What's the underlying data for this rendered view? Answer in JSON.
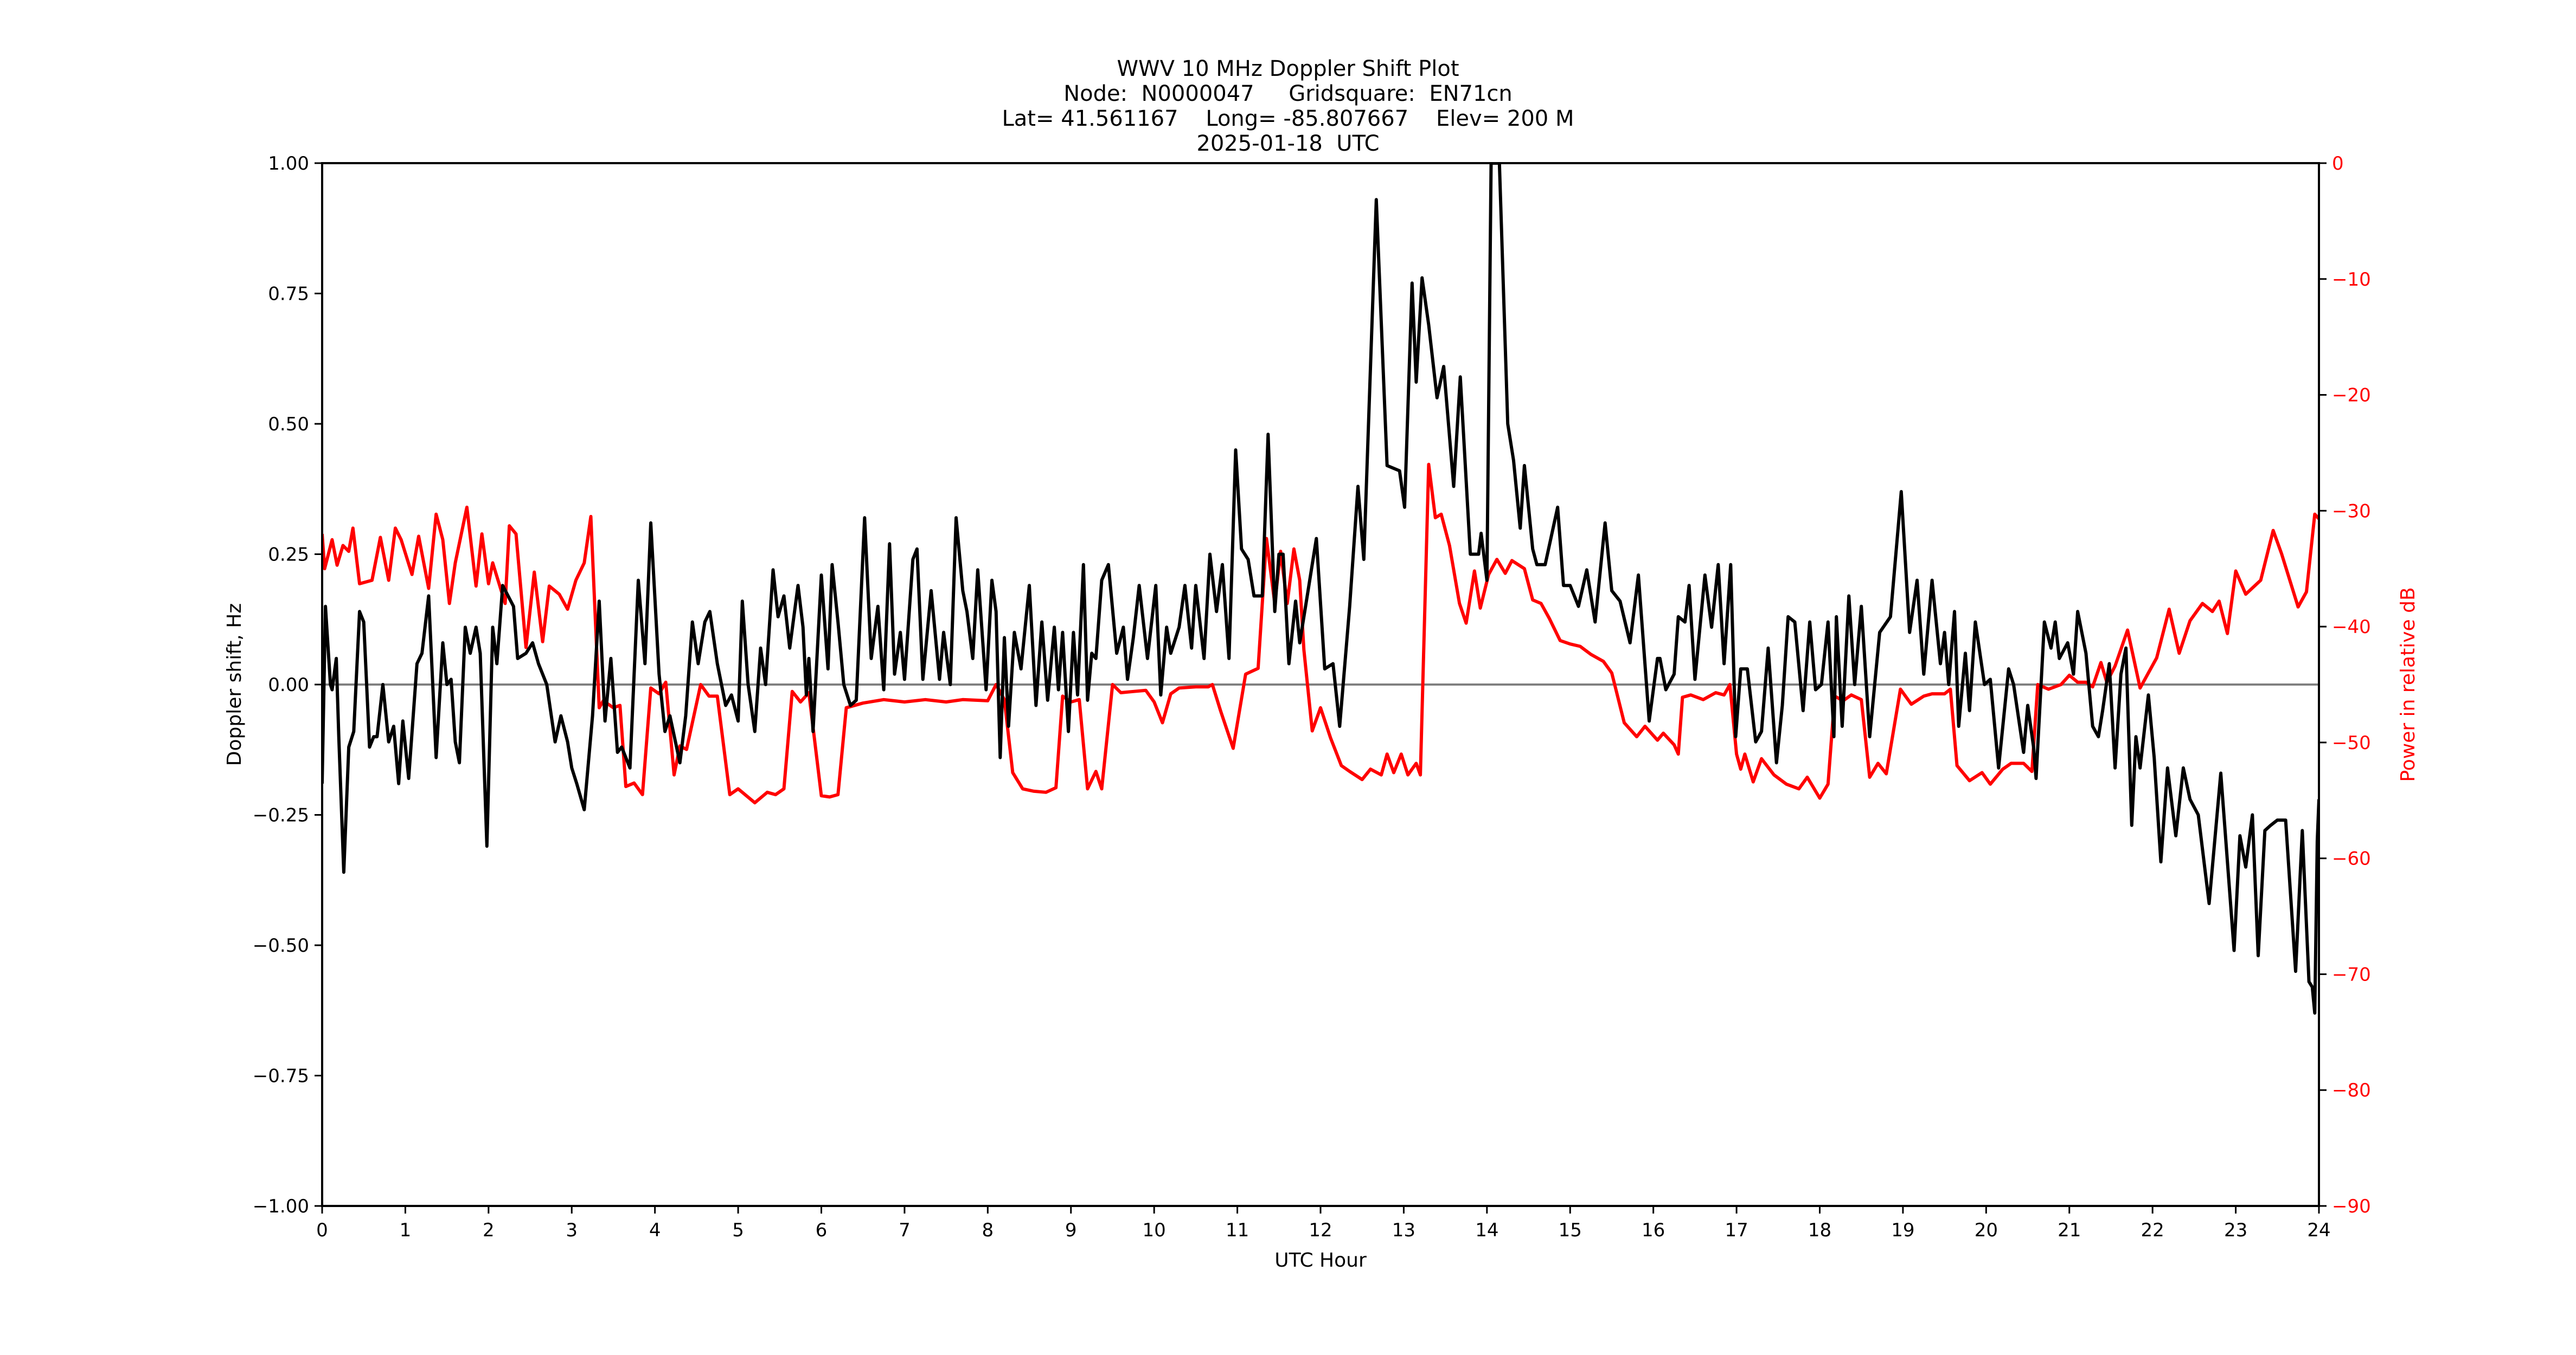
{
  "title": {
    "line1": "WWV 10 MHz Doppler Shift Plot",
    "line2": "Node:  N0000047     Gridsquare:  EN71cn",
    "line3": "Lat= 41.561167    Long= -85.807667    Elev= 200 M",
    "line4": "2025-01-18  UTC"
  },
  "colors": {
    "doppler": "#000000",
    "power": "#ff0000",
    "zero_line": "#808080",
    "axis": "#000000"
  },
  "chart_data": {
    "type": "line",
    "title": "WWV 10 MHz Doppler Shift Plot",
    "subtitle": [
      "Node:  N0000047     Gridsquare:  EN71cn",
      "Lat= 41.561167    Long= -85.807667    Elev= 200 M",
      "2025-01-18  UTC"
    ],
    "xlabel": "UTC Hour",
    "ylabel": "Doppler shift, Hz",
    "y2label": "Power in relative dB",
    "xlim": [
      0,
      24
    ],
    "ylim": [
      -1.0,
      1.0
    ],
    "y2lim": [
      -90,
      0
    ],
    "xticks": [
      0,
      1,
      2,
      3,
      4,
      5,
      6,
      7,
      8,
      9,
      10,
      11,
      12,
      13,
      14,
      15,
      16,
      17,
      18,
      19,
      20,
      21,
      22,
      23,
      24
    ],
    "yticks": [
      "1.00",
      "0.75",
      "0.50",
      "0.25",
      "0.00",
      "−0.25",
      "−0.50",
      "−0.75",
      "−1.00"
    ],
    "yticks_values": [
      1.0,
      0.75,
      0.5,
      0.25,
      0.0,
      -0.25,
      -0.5,
      -0.75,
      -1.0
    ],
    "y2ticks": [
      "0",
      "−10",
      "−20",
      "−30",
      "−40",
      "−50",
      "−60",
      "−70",
      "−80",
      "−90"
    ],
    "y2ticks_values": [
      0,
      -10,
      -20,
      -30,
      -40,
      -50,
      -60,
      -70,
      -80,
      -90
    ],
    "grid": false,
    "reference_line": {
      "y": 0.0,
      "color": "#808080"
    },
    "legend": null,
    "series": [
      {
        "name": "Doppler shift",
        "axis": "left",
        "color": "#000000",
        "x": [
          0,
          0.04,
          0.1,
          0.12,
          0.17,
          0.2,
          0.26,
          0.32,
          0.38,
          0.45,
          0.5,
          0.57,
          0.62,
          0.66,
          0.73,
          0.8,
          0.86,
          0.92,
          0.97,
          1.04,
          1.14,
          1.2,
          1.28,
          1.37,
          1.45,
          1.5,
          1.55,
          1.6,
          1.65,
          1.72,
          1.78,
          1.85,
          1.9,
          1.98,
          2.05,
          2.1,
          2.17,
          2.3,
          2.35,
          2.45,
          2.53,
          2.6,
          2.7,
          2.8,
          2.87,
          2.95,
          3.0,
          3.06,
          3.15,
          3.25,
          3.33,
          3.4,
          3.47,
          3.55,
          3.6,
          3.7,
          3.8,
          3.88,
          3.95,
          4.05,
          4.12,
          4.18,
          4.3,
          4.37,
          4.45,
          4.52,
          4.6,
          4.66,
          4.75,
          4.85,
          4.92,
          5.0,
          5.05,
          5.12,
          5.2,
          5.27,
          5.33,
          5.42,
          5.48,
          5.55,
          5.62,
          5.72,
          5.78,
          5.82,
          5.85,
          5.9,
          6.0,
          6.08,
          6.13,
          6.2,
          6.27,
          6.35,
          6.42,
          6.52,
          6.6,
          6.68,
          6.75,
          6.82,
          6.88,
          6.95,
          7.0,
          7.1,
          7.15,
          7.22,
          7.32,
          7.42,
          7.47,
          7.55,
          7.62,
          7.7,
          7.75,
          7.82,
          7.88,
          7.98,
          8.05,
          8.1,
          8.15,
          8.2,
          8.25,
          8.32,
          8.4,
          8.5,
          8.58,
          8.65,
          8.72,
          8.8,
          8.85,
          8.9,
          8.97,
          9.03,
          9.08,
          9.15,
          9.2,
          9.25,
          9.3,
          9.37,
          9.45,
          9.55,
          9.63,
          9.68,
          9.75,
          9.82,
          9.92,
          10.02,
          10.08,
          10.15,
          10.2,
          10.3,
          10.37,
          10.45,
          10.5,
          10.6,
          10.67,
          10.75,
          10.82,
          10.9,
          10.98,
          11.05,
          11.13,
          11.2,
          11.25,
          11.3,
          11.37,
          11.45,
          11.5,
          11.55,
          11.62,
          11.7,
          11.75,
          11.82,
          11.95,
          12.05,
          12.15,
          12.23,
          12.35,
          12.45,
          12.52,
          12.67,
          12.8,
          12.95,
          13.01,
          13.1,
          13.15,
          13.22,
          13.3,
          13.4,
          13.48,
          13.6,
          13.68,
          13.8,
          13.9,
          13.93,
          14.0,
          14.05,
          14.15,
          14.25,
          14.32,
          14.4,
          14.45,
          14.55,
          14.6,
          14.7,
          14.85,
          14.92,
          15.0,
          15.1,
          15.2,
          15.3,
          15.42,
          15.5,
          15.6,
          15.72,
          15.82,
          15.95,
          16.05,
          16.08,
          16.15,
          16.25,
          16.3,
          16.38,
          16.43,
          16.5,
          16.62,
          16.7,
          16.78,
          16.85,
          16.93,
          16.99,
          17.05,
          17.13,
          17.23,
          17.3,
          17.38,
          17.48,
          17.55,
          17.62,
          17.7,
          17.8,
          17.88,
          17.95,
          18.02,
          18.1,
          18.17,
          18.2,
          18.27,
          18.35,
          18.42,
          18.5,
          18.6,
          18.72,
          18.85,
          18.98,
          19.08,
          19.17,
          19.25,
          19.35,
          19.45,
          19.5,
          19.55,
          19.62,
          19.67,
          19.75,
          19.8,
          19.87,
          19.98,
          20.05,
          20.15,
          20.27,
          20.33,
          20.45,
          20.5,
          20.57,
          20.6,
          20.7,
          20.78,
          20.83,
          20.88,
          20.98,
          21.05,
          21.1,
          21.2,
          21.28,
          21.35,
          21.4,
          21.48,
          21.55,
          21.62,
          21.68,
          21.75,
          21.8,
          21.85,
          21.95,
          22.02,
          22.1,
          22.18,
          22.28,
          22.37,
          22.45,
          22.55,
          22.68,
          22.82,
          22.98,
          23.05,
          23.12,
          23.2,
          23.27,
          23.35,
          23.42,
          23.5,
          23.6,
          23.72,
          23.8,
          23.88,
          23.92,
          23.95,
          23.98,
          24.0
        ],
        "y": [
          -0.19,
          0.15,
          0.0,
          -0.01,
          0.05,
          -0.1,
          -0.36,
          -0.12,
          -0.09,
          0.14,
          0.12,
          -0.12,
          -0.1,
          -0.1,
          0.0,
          -0.11,
          -0.08,
          -0.19,
          -0.07,
          -0.18,
          0.04,
          0.06,
          0.17,
          -0.14,
          0.08,
          0.0,
          0.01,
          -0.11,
          -0.15,
          0.11,
          0.06,
          0.11,
          0.06,
          -0.31,
          0.11,
          0.04,
          0.19,
          0.15,
          0.05,
          0.06,
          0.08,
          0.04,
          0.0,
          -0.11,
          -0.06,
          -0.11,
          -0.16,
          -0.19,
          -0.24,
          -0.06,
          0.16,
          -0.07,
          0.05,
          -0.13,
          -0.12,
          -0.16,
          0.2,
          0.04,
          0.31,
          0.02,
          -0.09,
          -0.06,
          -0.15,
          -0.06,
          0.12,
          0.04,
          0.12,
          0.14,
          0.04,
          -0.04,
          -0.02,
          -0.07,
          0.16,
          0.0,
          -0.09,
          0.07,
          0.0,
          0.22,
          0.13,
          0.17,
          0.07,
          0.19,
          0.11,
          -0.02,
          0.05,
          -0.09,
          0.21,
          0.03,
          0.23,
          0.12,
          0.0,
          -0.04,
          -0.03,
          0.32,
          0.05,
          0.15,
          -0.01,
          0.27,
          0.02,
          0.1,
          0.01,
          0.24,
          0.26,
          0.01,
          0.18,
          0.01,
          0.1,
          0.0,
          0.32,
          0.18,
          0.14,
          0.05,
          0.22,
          -0.01,
          0.2,
          0.14,
          -0.14,
          0.09,
          -0.08,
          0.1,
          0.03,
          0.19,
          -0.04,
          0.12,
          -0.03,
          0.11,
          -0.01,
          0.1,
          -0.09,
          0.1,
          -0.02,
          0.23,
          -0.03,
          0.06,
          0.05,
          0.2,
          0.23,
          0.06,
          0.11,
          0.01,
          0.09,
          0.19,
          0.05,
          0.19,
          -0.02,
          0.11,
          0.06,
          0.11,
          0.19,
          0.07,
          0.19,
          0.05,
          0.25,
          0.14,
          0.23,
          0.05,
          0.45,
          0.26,
          0.24,
          0.17,
          0.17,
          0.17,
          0.48,
          0.14,
          0.25,
          0.25,
          0.04,
          0.16,
          0.08,
          0.15,
          0.28,
          0.03,
          0.04,
          -0.08,
          0.15,
          0.38,
          0.24,
          0.93,
          0.42,
          0.41,
          0.34,
          0.77,
          0.58,
          0.78,
          0.69,
          0.55,
          0.61,
          0.38,
          0.59,
          0.25,
          0.25,
          0.29,
          0.2,
          1.0,
          1.0,
          0.5,
          0.43,
          0.3,
          0.42,
          0.26,
          0.23,
          0.23,
          0.34,
          0.19,
          0.19,
          0.15,
          0.22,
          0.12,
          0.31,
          0.18,
          0.16,
          0.08,
          0.21,
          -0.07,
          0.05,
          0.05,
          -0.01,
          0.02,
          0.13,
          0.12,
          0.19,
          0.01,
          0.21,
          0.11,
          0.23,
          0.04,
          0.23,
          -0.1,
          0.03,
          0.03,
          -0.11,
          -0.09,
          0.07,
          -0.15,
          -0.04,
          0.13,
          0.12,
          -0.05,
          0.12,
          -0.01,
          0.0,
          0.12,
          -0.1,
          0.13,
          -0.08,
          0.17,
          0.0,
          0.15,
          -0.1,
          0.1,
          0.13,
          0.37,
          0.1,
          0.2,
          0.02,
          0.2,
          0.04,
          0.1,
          0.0,
          0.14,
          -0.08,
          0.06,
          -0.05,
          0.12,
          0.0,
          0.01,
          -0.16,
          0.03,
          0.0,
          -0.13,
          -0.04,
          -0.12,
          -0.18,
          0.12,
          0.07,
          0.12,
          0.05,
          0.08,
          0.02,
          0.14,
          0.06,
          -0.08,
          -0.1,
          -0.05,
          0.04,
          -0.16,
          0.02,
          0.07,
          -0.27,
          -0.1,
          -0.16,
          -0.02,
          -0.14,
          -0.34,
          -0.16,
          -0.29,
          -0.16,
          -0.22,
          -0.25,
          -0.42,
          -0.17,
          -0.51,
          -0.29,
          -0.35,
          -0.25,
          -0.52,
          -0.28,
          -0.27,
          -0.26,
          -0.26,
          -0.55,
          -0.28,
          -0.57,
          -0.58,
          -0.63,
          -0.3,
          -0.22
        ]
      },
      {
        "name": "Power",
        "axis": "right",
        "color": "#ff0000",
        "x": [
          0,
          0.03,
          0.12,
          0.18,
          0.25,
          0.32,
          0.37,
          0.45,
          0.6,
          0.7,
          0.8,
          0.88,
          0.95,
          1.08,
          1.16,
          1.28,
          1.37,
          1.45,
          1.53,
          1.6,
          1.74,
          1.85,
          1.92,
          2.0,
          2.05,
          2.2,
          2.25,
          2.33,
          2.45,
          2.55,
          2.65,
          2.73,
          2.85,
          2.95,
          3.05,
          3.15,
          3.23,
          3.33,
          3.38,
          3.5,
          3.58,
          3.65,
          3.75,
          3.85,
          3.95,
          4.05,
          4.13,
          4.23,
          4.3,
          4.38,
          4.55,
          4.65,
          4.75,
          4.9,
          5.0,
          5.2,
          5.35,
          5.45,
          5.55,
          5.65,
          5.75,
          5.85,
          6.0,
          6.1,
          6.2,
          6.3,
          6.5,
          6.75,
          7.0,
          7.25,
          7.5,
          7.7,
          8.0,
          8.1,
          8.2,
          8.3,
          8.42,
          8.55,
          8.7,
          8.82,
          8.9,
          9.0,
          9.1,
          9.2,
          9.3,
          9.37,
          9.5,
          9.6,
          9.75,
          9.9,
          10.0,
          10.1,
          10.2,
          10.3,
          10.5,
          10.65,
          10.7,
          10.8,
          10.95,
          11.1,
          11.25,
          11.35,
          11.45,
          11.52,
          11.6,
          11.68,
          11.75,
          11.8,
          11.9,
          12.0,
          12.12,
          12.25,
          12.35,
          12.5,
          12.6,
          12.73,
          12.8,
          12.88,
          12.97,
          13.05,
          13.15,
          13.2,
          13.3,
          13.38,
          13.45,
          13.55,
          13.67,
          13.75,
          13.85,
          13.92,
          14.02,
          14.12,
          14.22,
          14.3,
          14.45,
          14.55,
          14.65,
          14.75,
          14.88,
          15.0,
          15.12,
          15.25,
          15.4,
          15.5,
          15.65,
          15.8,
          15.9,
          16.05,
          16.12,
          16.25,
          16.3,
          16.35,
          16.45,
          16.6,
          16.75,
          16.85,
          16.92,
          17.0,
          17.05,
          17.1,
          17.2,
          17.3,
          17.45,
          17.6,
          17.75,
          17.85,
          18.0,
          18.1,
          18.18,
          18.28,
          18.38,
          18.5,
          18.6,
          18.7,
          18.8,
          18.97,
          19.1,
          19.25,
          19.35,
          19.5,
          19.57,
          19.65,
          19.8,
          19.95,
          20.05,
          20.2,
          20.3,
          20.45,
          20.55,
          20.62,
          20.75,
          20.9,
          21.0,
          21.1,
          21.2,
          21.28,
          21.38,
          21.45,
          21.55,
          21.7,
          21.85,
          21.95,
          22.05,
          22.2,
          22.32,
          22.45,
          22.6,
          22.72,
          22.8,
          22.9,
          23.0,
          23.12,
          23.3,
          23.45,
          23.55,
          23.75,
          23.85,
          23.95,
          24.0
        ],
        "y": [
          -32,
          -35,
          -32.5,
          -34.7,
          -33,
          -33.5,
          -31.5,
          -36.3,
          -36,
          -32.3,
          -36,
          -31.5,
          -32.5,
          -35.5,
          -32.2,
          -36.7,
          -30.3,
          -32.5,
          -38,
          -34.5,
          -29.7,
          -36.5,
          -32,
          -36.3,
          -34.5,
          -38,
          -31.3,
          -32,
          -41.8,
          -35.3,
          -41.3,
          -36.5,
          -37.2,
          -38.5,
          -36,
          -34.5,
          -30.5,
          -47,
          -46.4,
          -47,
          -46.8,
          -53.8,
          -53.5,
          -54.5,
          -45.3,
          -45.8,
          -44.8,
          -52.8,
          -50.3,
          -50.6,
          -45,
          -46,
          -46,
          -54.5,
          -54,
          -55.2,
          -54.3,
          -54.5,
          -54,
          -45.6,
          -46.5,
          -45.7,
          -54.6,
          -54.7,
          -54.5,
          -47,
          -46.6,
          -46.3,
          -46.5,
          -46.3,
          -46.5,
          -46.3,
          -46.4,
          -45,
          -46.3,
          -52.6,
          -54,
          -54.2,
          -54.3,
          -53.9,
          -46,
          -46.5,
          -46.3,
          -54,
          -52.5,
          -54,
          -45,
          -45.7,
          -45.6,
          -45.5,
          -46.5,
          -48.3,
          -45.8,
          -45.3,
          -45.2,
          -45.2,
          -45,
          -47.3,
          -50.5,
          -44.1,
          -43.6,
          -32.4,
          -38,
          -33.5,
          -38,
          -33.3,
          -36,
          -42,
          -49,
          -47,
          -49.6,
          -52,
          -52.5,
          -53.2,
          -52.3,
          -52.8,
          -51,
          -52.6,
          -51,
          -52.8,
          -51.8,
          -52.8,
          -26,
          -30.6,
          -30.3,
          -33,
          -38,
          -39.7,
          -35.2,
          -38.4,
          -35.5,
          -34.2,
          -35.4,
          -34.3,
          -35,
          -37.7,
          -38,
          -39.3,
          -41.2,
          -41.5,
          -41.7,
          -42.4,
          -43,
          -44,
          -48.3,
          -49.5,
          -48.6,
          -49.8,
          -49.2,
          -50.2,
          -51,
          -46.1,
          -45.9,
          -46.3,
          -45.7,
          -45.9,
          -45,
          -51,
          -52.3,
          -51,
          -53.4,
          -51.4,
          -52.8,
          -53.6,
          -54,
          -53,
          -54.8,
          -53.6,
          -46,
          -46.4,
          -45.9,
          -46.3,
          -53,
          -51.8,
          -52.7,
          -45.4,
          -46.7,
          -46,
          -45.8,
          -45.8,
          -45.4,
          -52,
          -53.3,
          -52.6,
          -53.6,
          -52.3,
          -51.8,
          -51.8,
          -52.5,
          -45,
          -45.4,
          -45,
          -44.2,
          -44.8,
          -44.8,
          -45.2,
          -43.1,
          -44.8,
          -43.4,
          -40.3,
          -45.3,
          -44,
          -42.7,
          -38.5,
          -42.3,
          -39.5,
          -38,
          -38.7,
          -37.8,
          -40.6,
          -35.2,
          -37.2,
          -36,
          -31.7,
          -33.7,
          -38.3,
          -37,
          -30.3,
          -30.7
        ]
      }
    ]
  }
}
